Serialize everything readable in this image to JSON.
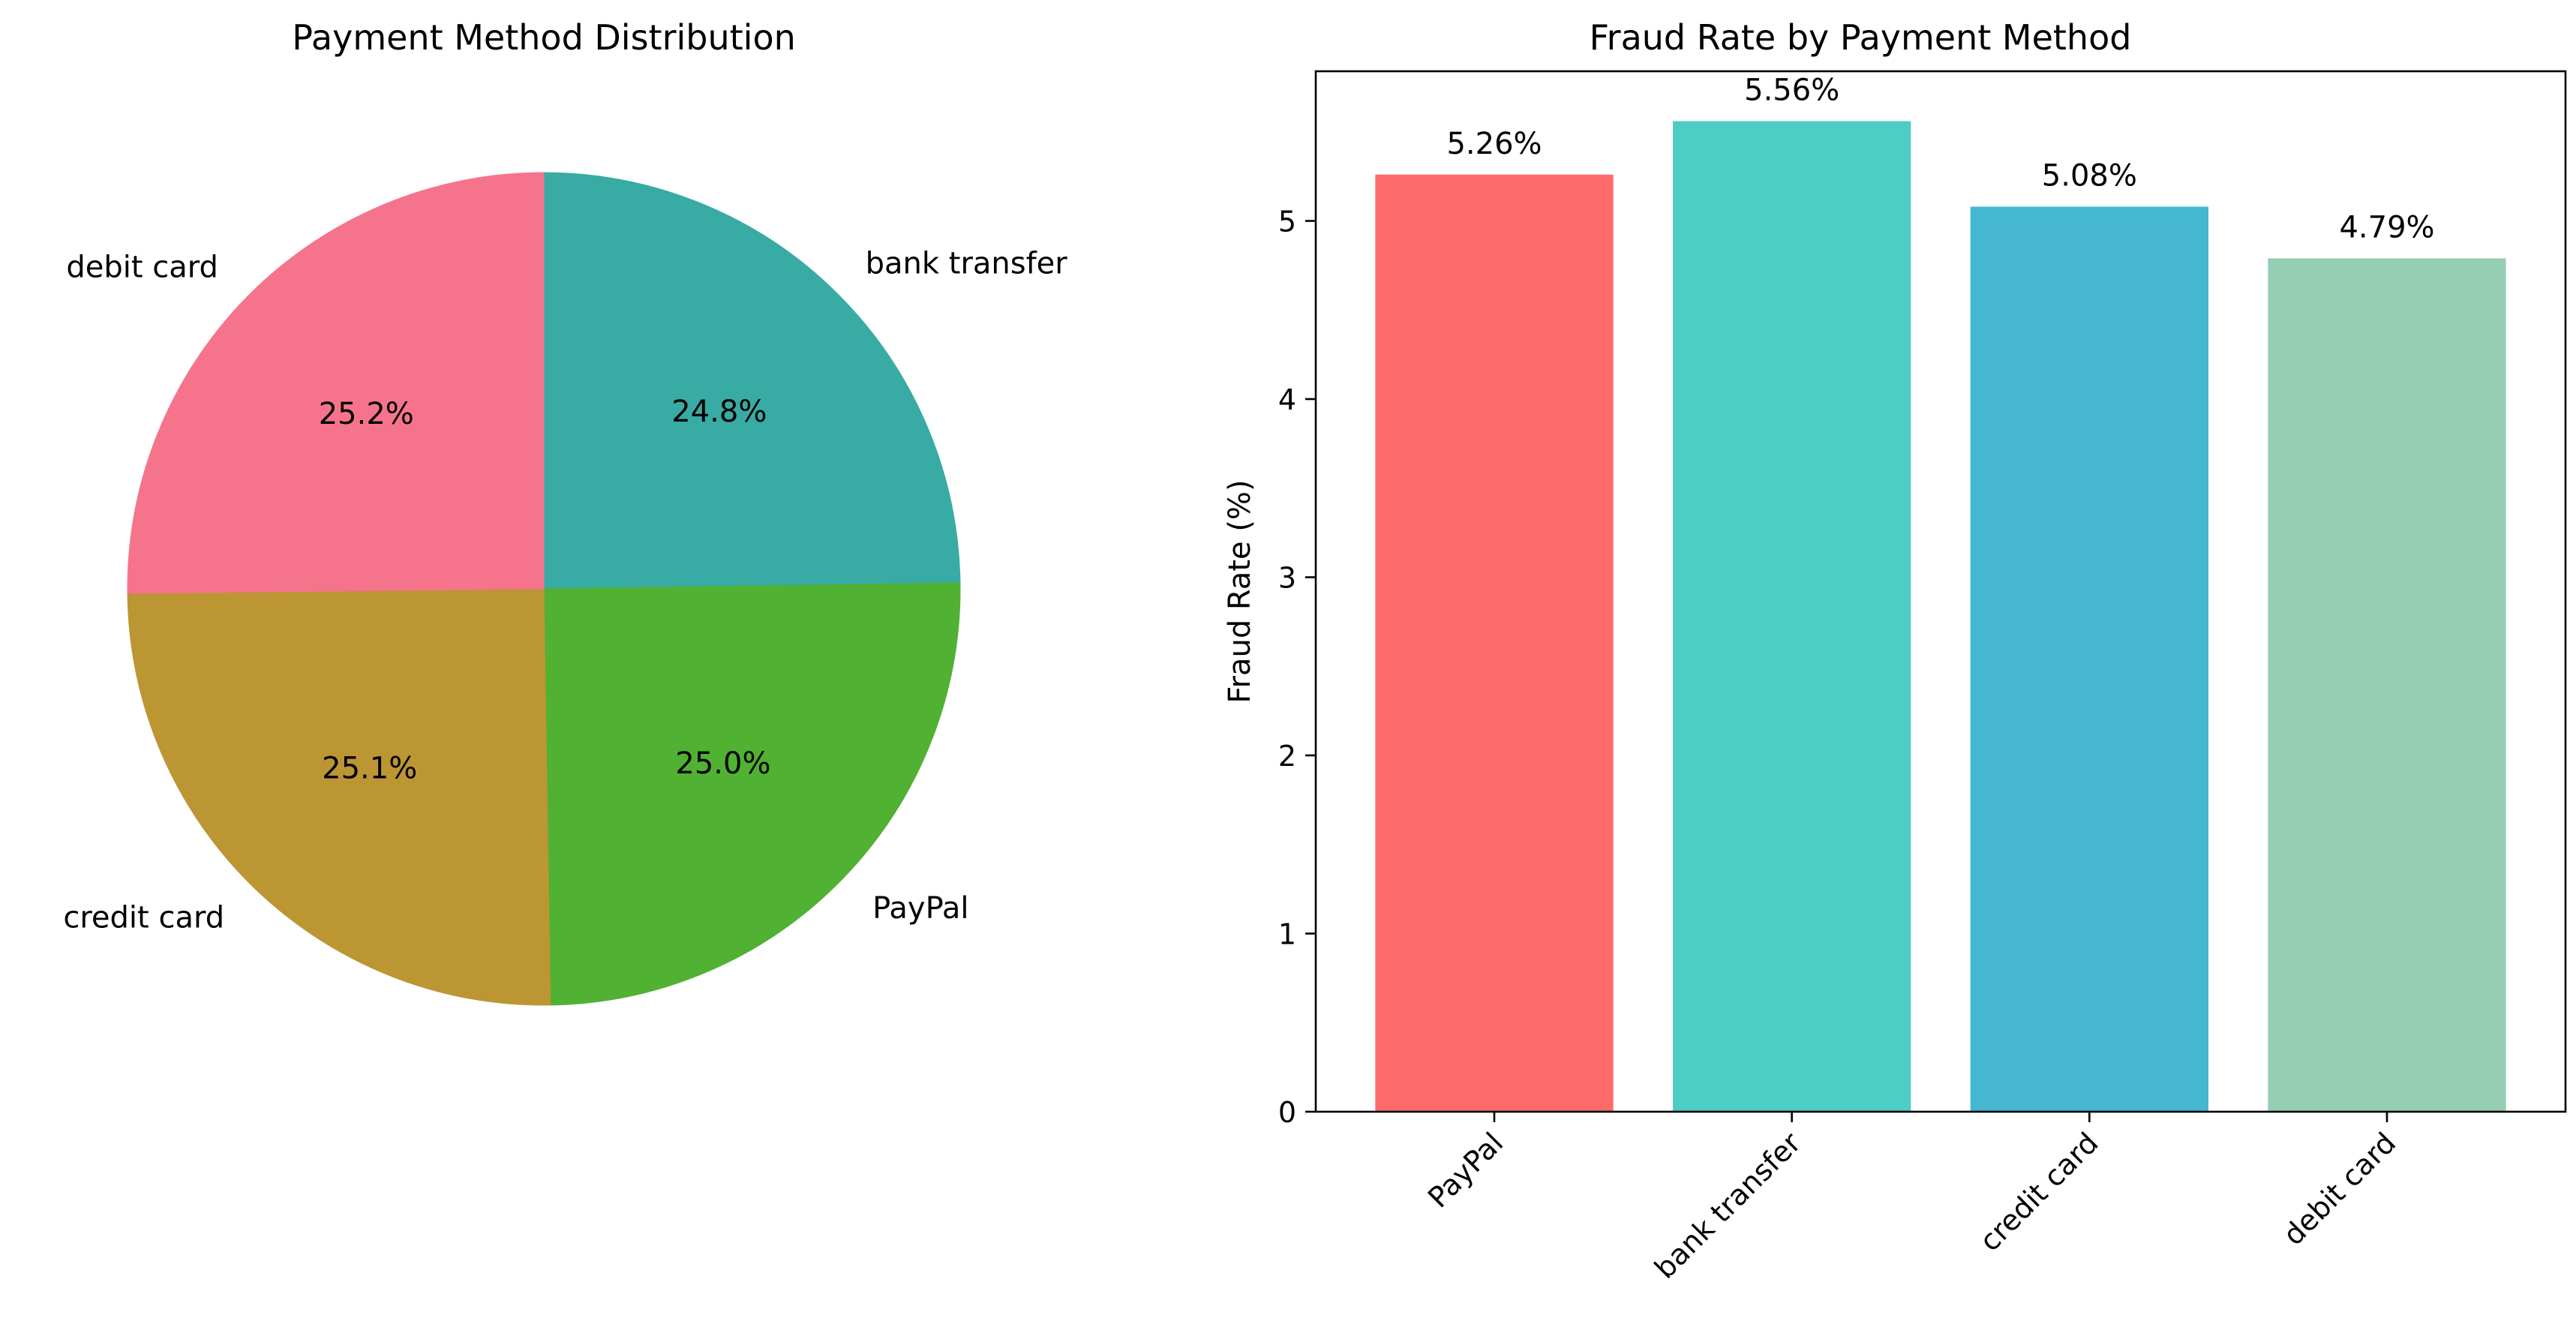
{
  "chart_data": [
    {
      "type": "pie",
      "title": "Payment Method Distribution",
      "categories": [
        "bank transfer",
        "PayPal",
        "credit card",
        "debit card"
      ],
      "values": [
        24.8,
        25.0,
        25.1,
        25.2
      ],
      "value_labels": [
        "24.8%",
        "25.0%",
        "25.1%",
        "25.2%"
      ],
      "colors": [
        "#38aba5",
        "#50b132",
        "#bb9633",
        "#f5748c"
      ],
      "start_angle_deg": 90,
      "direction": "clockwise"
    },
    {
      "type": "bar",
      "title": "Fraud Rate by Payment Method",
      "categories": [
        "PayPal",
        "bank transfer",
        "credit card",
        "debit card"
      ],
      "values": [
        5.26,
        5.56,
        5.08,
        4.79
      ],
      "value_labels": [
        "5.26%",
        "5.56%",
        "5.08%",
        "4.79%"
      ],
      "colors": [
        "#ff6b6b",
        "#4ecdc4",
        "#45b7d1",
        "#96ceb4"
      ],
      "xlabel": "",
      "ylabel": "Fraud Rate (%)",
      "ylim": [
        0,
        5.84
      ],
      "yticks": [
        0,
        1,
        2,
        3,
        4,
        5
      ],
      "grid": false,
      "x_tick_rotation_deg": 45
    }
  ]
}
